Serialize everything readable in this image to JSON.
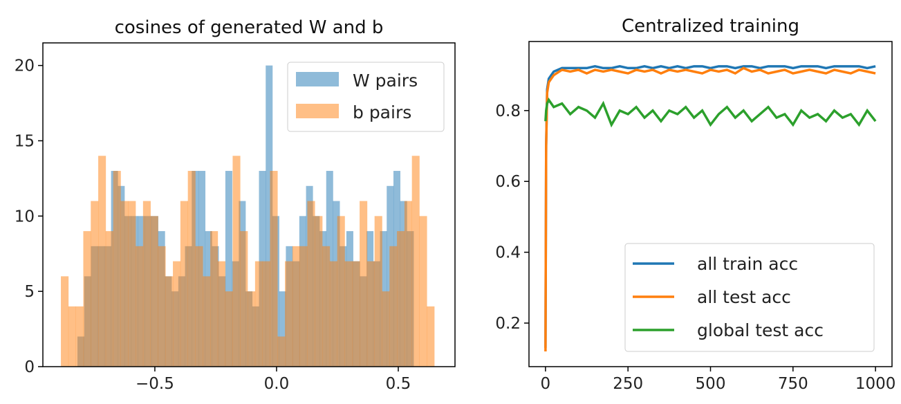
{
  "chart_data": [
    {
      "type": "histogram",
      "title": "cosines of generated W and b",
      "xlabel": "",
      "ylabel": "",
      "xlim": [
        -0.96,
        0.733
      ],
      "ylim": [
        0,
        21.5
      ],
      "xticks": [
        -0.5,
        0.0,
        0.5
      ],
      "xtick_labels": [
        "−0.5",
        "0.0",
        "0.5"
      ],
      "yticks": [
        0,
        5,
        10,
        15,
        20
      ],
      "ytick_labels": [
        "0",
        "5",
        "10",
        "15",
        "20"
      ],
      "legend_placement": "top-right",
      "series": [
        {
          "name": "W pairs",
          "color": "#1f77b4",
          "alpha": 0.5,
          "range": [
            -0.818,
            0.563
          ],
          "counts": [
            2,
            6,
            8,
            8,
            8,
            13,
            12,
            10,
            10,
            10,
            10,
            10,
            9,
            6,
            5,
            6,
            8,
            13,
            13,
            9,
            8,
            6,
            13,
            7,
            11,
            5,
            4,
            13,
            20,
            10,
            5,
            8,
            7,
            10,
            12,
            10,
            9,
            13,
            11,
            8,
            9,
            7,
            6,
            9,
            7,
            9,
            12,
            13,
            11,
            9
          ]
        },
        {
          "name": "b pairs",
          "color": "#ff7f0e",
          "alpha": 0.5,
          "range": [
            -0.886,
            0.648
          ],
          "counts": [
            6,
            4,
            4,
            9,
            11,
            14,
            9,
            13,
            11,
            11,
            8,
            11,
            10,
            8,
            6,
            7,
            11,
            13,
            8,
            6,
            9,
            7,
            5,
            14,
            9,
            5,
            7,
            7,
            13,
            2,
            7,
            8,
            8,
            11,
            10,
            8,
            7,
            10,
            7,
            7,
            11,
            7,
            10,
            5,
            8,
            9,
            11,
            14,
            10,
            4
          ]
        }
      ]
    },
    {
      "type": "line",
      "title": "Centralized training",
      "xlim": [
        -50,
        1050
      ],
      "ylim": [
        0.077,
        0.995
      ],
      "xticks": [
        0,
        250,
        500,
        750,
        1000
      ],
      "xtick_labels": [
        "0",
        "250",
        "500",
        "750",
        "1000"
      ],
      "yticks": [
        0.2,
        0.4,
        0.6,
        0.8
      ],
      "ytick_labels": [
        "0.2",
        "0.4",
        "0.6",
        "0.8"
      ],
      "legend_placement": "lower-right",
      "x": [
        0,
        2,
        5,
        10,
        25,
        50,
        75,
        100,
        125,
        150,
        175,
        200,
        225,
        250,
        275,
        300,
        325,
        350,
        375,
        400,
        425,
        450,
        475,
        500,
        525,
        550,
        575,
        600,
        625,
        650,
        675,
        700,
        725,
        750,
        775,
        800,
        825,
        850,
        875,
        900,
        925,
        950,
        975,
        1000
      ],
      "series": [
        {
          "name": "all train acc",
          "color": "#1f77b4",
          "values": [
            0.13,
            0.7,
            0.86,
            0.89,
            0.91,
            0.92,
            0.92,
            0.92,
            0.92,
            0.925,
            0.92,
            0.92,
            0.925,
            0.92,
            0.92,
            0.925,
            0.92,
            0.925,
            0.92,
            0.925,
            0.92,
            0.925,
            0.925,
            0.92,
            0.925,
            0.925,
            0.92,
            0.925,
            0.925,
            0.92,
            0.925,
            0.925,
            0.925,
            0.92,
            0.925,
            0.925,
            0.925,
            0.92,
            0.925,
            0.925,
            0.925,
            0.925,
            0.92,
            0.925
          ]
        },
        {
          "name": "all test acc",
          "color": "#ff7f0e",
          "values": [
            0.12,
            0.7,
            0.85,
            0.88,
            0.9,
            0.915,
            0.91,
            0.915,
            0.905,
            0.915,
            0.91,
            0.915,
            0.91,
            0.905,
            0.915,
            0.91,
            0.915,
            0.905,
            0.915,
            0.91,
            0.915,
            0.91,
            0.905,
            0.915,
            0.91,
            0.915,
            0.905,
            0.92,
            0.91,
            0.915,
            0.905,
            0.91,
            0.915,
            0.905,
            0.91,
            0.915,
            0.91,
            0.905,
            0.915,
            0.91,
            0.905,
            0.915,
            0.91,
            0.905
          ]
        },
        {
          "name": "global test acc",
          "color": "#2ca02c",
          "values": [
            0.77,
            0.8,
            0.82,
            0.83,
            0.81,
            0.82,
            0.79,
            0.81,
            0.8,
            0.78,
            0.82,
            0.76,
            0.8,
            0.79,
            0.81,
            0.78,
            0.8,
            0.77,
            0.8,
            0.79,
            0.81,
            0.78,
            0.8,
            0.76,
            0.79,
            0.81,
            0.78,
            0.8,
            0.77,
            0.79,
            0.81,
            0.78,
            0.79,
            0.76,
            0.8,
            0.78,
            0.79,
            0.77,
            0.8,
            0.78,
            0.79,
            0.76,
            0.8,
            0.77
          ]
        }
      ]
    }
  ]
}
